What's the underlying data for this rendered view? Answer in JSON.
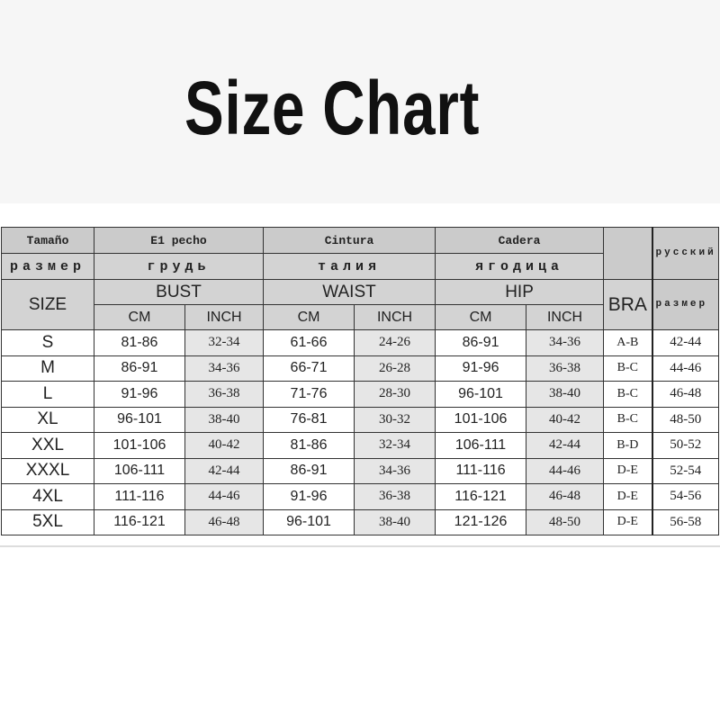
{
  "title": "Size Chart",
  "chart_data": {
    "type": "table",
    "header": {
      "row1": {
        "size": "Tamaño",
        "bust": "E1 pecho",
        "waist": "Cintura",
        "hip": "Cadera",
        "russian": "русский"
      },
      "row2": {
        "size": "размер",
        "bust": "грудь",
        "waist": "талия",
        "hip": "ягодица"
      },
      "row3": {
        "size": "SIZE",
        "bust": "BUST",
        "waist": "WAIST",
        "hip": "HIP",
        "bra": "BRA",
        "russian": "размер"
      },
      "row4": {
        "cm": "CM",
        "inch": "INCH"
      }
    },
    "columns": [
      "SIZE",
      "BUST CM",
      "BUST INCH",
      "WAIST CM",
      "WAIST INCH",
      "HIP CM",
      "HIP INCH",
      "BRA",
      "размер"
    ],
    "rows": [
      [
        "S",
        "81-86",
        "32-34",
        "61-66",
        "24-26",
        "86-91",
        "34-36",
        "A-B",
        "42-44"
      ],
      [
        "M",
        "86-91",
        "34-36",
        "66-71",
        "26-28",
        "91-96",
        "36-38",
        "B-C",
        "44-46"
      ],
      [
        "L",
        "91-96",
        "36-38",
        "71-76",
        "28-30",
        "96-101",
        "38-40",
        "B-C",
        "46-48"
      ],
      [
        "XL",
        "96-101",
        "38-40",
        "76-81",
        "30-32",
        "101-106",
        "40-42",
        "B-C",
        "48-50"
      ],
      [
        "XXL",
        "101-106",
        "40-42",
        "81-86",
        "32-34",
        "106-111",
        "42-44",
        "B-D",
        "50-52"
      ],
      [
        "XXXL",
        "106-111",
        "42-44",
        "86-91",
        "34-36",
        "111-116",
        "44-46",
        "D-E",
        "52-54"
      ],
      [
        "4XL",
        "111-116",
        "44-46",
        "91-96",
        "36-38",
        "116-121",
        "46-48",
        "D-E",
        "54-56"
      ],
      [
        "5XL",
        "116-121",
        "46-48",
        "96-101",
        "38-40",
        "121-126",
        "48-50",
        "D-E",
        "56-58"
      ]
    ]
  },
  "colors": {
    "header_bg": "#cbcbcb",
    "inch_bg": "#e6e6e6",
    "border": "#333333",
    "top_band": "#f6f6f6"
  }
}
